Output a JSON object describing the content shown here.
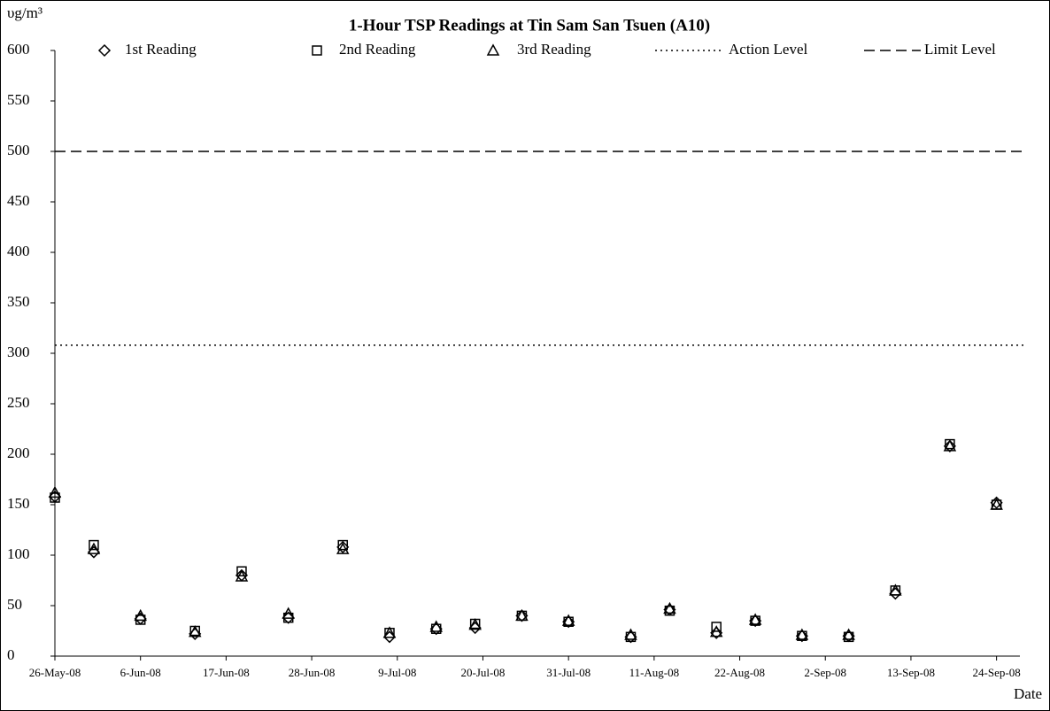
{
  "chart_data": {
    "type": "scatter",
    "title": "1-Hour TSP Readings at Tin Sam San Tsuen (A10)",
    "y_label": "υg/m³",
    "x_label": "Date",
    "x": [
      "2008-05-26",
      "2008-05-31",
      "2008-06-06",
      "2008-06-13",
      "2008-06-19",
      "2008-06-25",
      "2008-07-02",
      "2008-07-08",
      "2008-07-14",
      "2008-07-19",
      "2008-07-25",
      "2008-07-31",
      "2008-08-08",
      "2008-08-13",
      "2008-08-19",
      "2008-08-24",
      "2008-08-30",
      "2008-09-05",
      "2008-09-11",
      "2008-09-18",
      "2008-09-24"
    ],
    "series": [
      {
        "name": "1st Reading",
        "marker": "diamond",
        "color": "#000000",
        "values": [
          158,
          103,
          37,
          22,
          80,
          38,
          108,
          19,
          27,
          28,
          40,
          34,
          19,
          46,
          23,
          35,
          20,
          20,
          62,
          208,
          152
        ]
      },
      {
        "name": "2nd Reading",
        "marker": "square",
        "color": "#000000",
        "values": [
          157,
          110,
          36,
          25,
          84,
          38,
          110,
          23,
          27,
          32,
          40,
          34,
          19,
          45,
          29,
          35,
          20,
          19,
          65,
          210,
          150
        ]
      },
      {
        "name": "3rd Reading",
        "marker": "triangle",
        "color": "#000000",
        "values": [
          162,
          106,
          40,
          24,
          79,
          42,
          106,
          23,
          29,
          31,
          40,
          35,
          21,
          47,
          24,
          36,
          21,
          21,
          65,
          208,
          150
        ]
      }
    ],
    "reference_lines": [
      {
        "name": "Action Level",
        "value": 308,
        "style": "dotted",
        "color": "#000000"
      },
      {
        "name": "Limit Level",
        "value": 500,
        "style": "dashed",
        "color": "#000000"
      }
    ],
    "xlim": [
      "2008-05-26",
      "2008-09-27"
    ],
    "xticks": [
      {
        "value": "2008-05-26",
        "label": "26-May-08"
      },
      {
        "value": "2008-06-06",
        "label": "6-Jun-08"
      },
      {
        "value": "2008-06-17",
        "label": "17-Jun-08"
      },
      {
        "value": "2008-06-28",
        "label": "28-Jun-08"
      },
      {
        "value": "2008-07-09",
        "label": "9-Jul-08"
      },
      {
        "value": "2008-07-20",
        "label": "20-Jul-08"
      },
      {
        "value": "2008-07-31",
        "label": "31-Jul-08"
      },
      {
        "value": "2008-08-11",
        "label": "11-Aug-08"
      },
      {
        "value": "2008-08-22",
        "label": "22-Aug-08"
      },
      {
        "value": "2008-09-02",
        "label": "2-Sep-08"
      },
      {
        "value": "2008-09-13",
        "label": "13-Sep-08"
      },
      {
        "value": "2008-09-24",
        "label": "24-Sep-08"
      }
    ],
    "ylim": [
      0,
      600
    ],
    "yticks": [
      0,
      50,
      100,
      150,
      200,
      250,
      300,
      350,
      400,
      450,
      500,
      550,
      600
    ],
    "grid": false
  }
}
